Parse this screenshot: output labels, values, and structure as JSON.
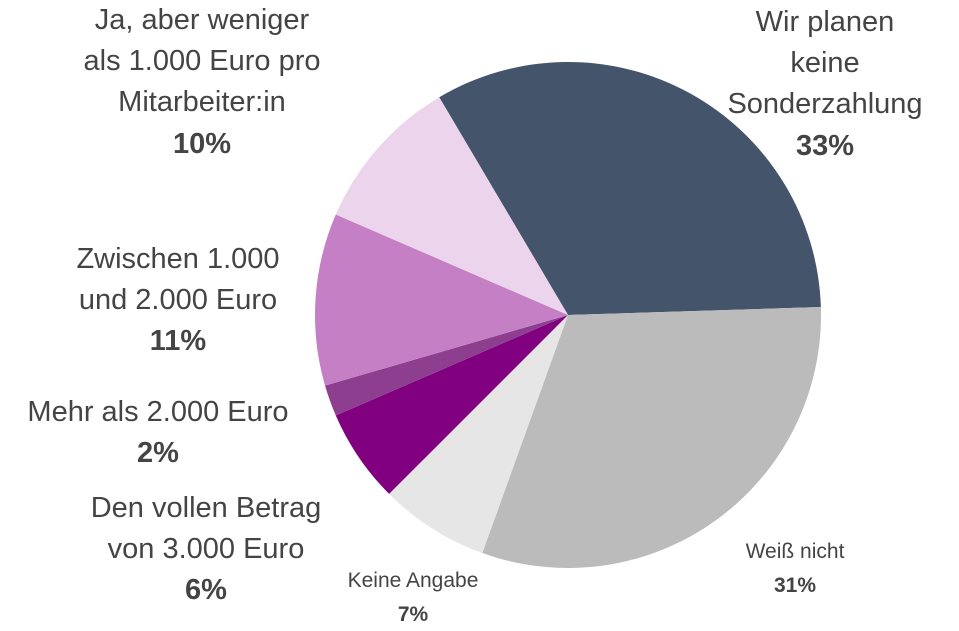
{
  "chart_data": {
    "type": "pie",
    "categories": [
      "Wir planen keine\nSonderzahlung",
      "Weiß nicht",
      "Keine Angabe",
      "Den vollen Betrag\nvon 3.000 Euro",
      "Mehr als 2.000 Euro",
      "Zwischen 1.000\nund 2.000 Euro",
      "Ja, aber weniger\nals 1.000 Euro pro\nMitarbeiter:in"
    ],
    "values": [
      33,
      31,
      7,
      6,
      2,
      11,
      10
    ],
    "value_labels": [
      "33%",
      "31%",
      "7%",
      "6%",
      "2%",
      "11%",
      "10%"
    ],
    "colors": [
      "#44546a",
      "#bbbbbb",
      "#e6e6e6",
      "#800080",
      "#8e3e8e",
      "#c580c5",
      "#ecd5ec"
    ]
  }
}
